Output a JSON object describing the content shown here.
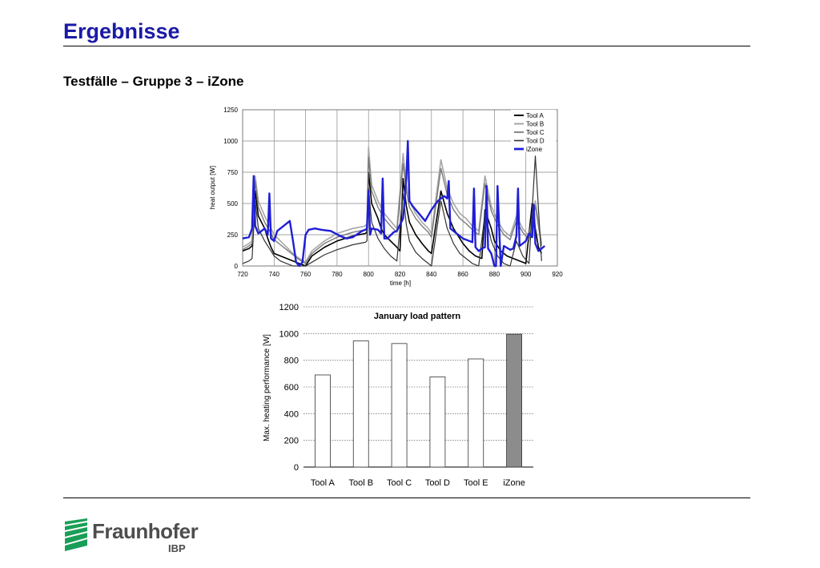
{
  "header": {
    "title": "Ergebnisse",
    "subtitle": "Testfälle – Gruppe 3 – iZone"
  },
  "colors": {
    "title": "#1a1aa6",
    "izone": "#1f1fd6",
    "bar_izone": "#8c8c8c",
    "tool_a": "#000000",
    "tool_b": "#a6a6a6",
    "tool_c": "#7a7a7a",
    "tool_d": "#333333",
    "brand_green": "#1a9e57"
  },
  "chart_data": [
    {
      "type": "line",
      "xlabel": "time [h]",
      "ylabel": "heat output [W]",
      "xlim": [
        720,
        920
      ],
      "ylim": [
        0,
        1250
      ],
      "x_ticks": [
        "720",
        "740",
        "760",
        "780",
        "800",
        "820",
        "840",
        "860",
        "880",
        "900",
        "920"
      ],
      "y_ticks": [
        "0",
        "250",
        "500",
        "750",
        "1000",
        "1250"
      ],
      "grid": true,
      "legend_position": "top-right",
      "series": [
        {
          "name": "Tool A",
          "x": [
            720,
            724,
            726,
            728,
            730,
            734,
            736,
            738,
            740,
            744,
            748,
            752,
            756,
            758,
            760,
            764,
            772,
            780,
            790,
            798,
            799,
            800,
            802,
            806,
            808,
            810,
            814,
            818,
            820,
            822,
            824,
            826,
            830,
            834,
            838,
            840,
            846,
            850,
            854,
            858,
            860,
            864,
            868,
            872,
            874,
            878,
            880,
            884,
            888,
            892,
            896,
            898,
            900,
            904,
            906,
            908,
            910
          ],
          "values": [
            120,
            140,
            160,
            600,
            400,
            300,
            220,
            150,
            100,
            80,
            60,
            40,
            20,
            10,
            0,
            80,
            150,
            200,
            240,
            260,
            270,
            750,
            500,
            380,
            300,
            250,
            200,
            150,
            120,
            700,
            480,
            350,
            250,
            180,
            120,
            100,
            600,
            420,
            300,
            220,
            180,
            120,
            80,
            60,
            450,
            300,
            200,
            120,
            80,
            60,
            40,
            30,
            20,
            500,
            300,
            150,
            100
          ]
        },
        {
          "name": "Tool B",
          "x": [
            720,
            724,
            726,
            728,
            730,
            734,
            738,
            740,
            744,
            748,
            752,
            756,
            760,
            764,
            772,
            780,
            790,
            798,
            799,
            800,
            802,
            806,
            810,
            814,
            818,
            822,
            824,
            826,
            830,
            834,
            838,
            840,
            846,
            850,
            854,
            858,
            862,
            866,
            870,
            874,
            878,
            882,
            886,
            890,
            894,
            898,
            902,
            906,
            910
          ],
          "values": [
            150,
            180,
            200,
            720,
            520,
            400,
            300,
            250,
            200,
            150,
            100,
            60,
            30,
            120,
            200,
            260,
            300,
            320,
            340,
            950,
            650,
            520,
            420,
            360,
            300,
            900,
            650,
            520,
            420,
            350,
            300,
            260,
            850,
            620,
            500,
            420,
            380,
            320,
            280,
            720,
            480,
            360,
            280,
            240,
            400,
            300,
            240,
            520,
            180
          ]
        },
        {
          "name": "Tool C",
          "x": [
            720,
            724,
            726,
            728,
            730,
            734,
            738,
            740,
            744,
            748,
            752,
            756,
            760,
            764,
            772,
            780,
            790,
            798,
            799,
            800,
            802,
            806,
            810,
            814,
            818,
            822,
            824,
            826,
            830,
            834,
            838,
            840,
            846,
            850,
            854,
            858,
            862,
            866,
            870,
            874,
            878,
            882,
            886,
            890,
            894,
            898,
            902,
            906,
            910
          ],
          "values": [
            130,
            160,
            180,
            680,
            470,
            350,
            260,
            210,
            170,
            130,
            90,
            50,
            20,
            100,
            180,
            230,
            270,
            290,
            300,
            870,
            600,
            470,
            380,
            320,
            270,
            820,
            600,
            470,
            380,
            320,
            270,
            230,
            780,
            570,
            450,
            380,
            340,
            290,
            250,
            660,
            440,
            330,
            250,
            210,
            360,
            270,
            210,
            480,
            160
          ]
        },
        {
          "name": "Tool D",
          "x": [
            720,
            724,
            726,
            728,
            730,
            734,
            738,
            740,
            744,
            748,
            752,
            756,
            760,
            764,
            772,
            780,
            790,
            798,
            799,
            800,
            802,
            806,
            810,
            814,
            818,
            822,
            824,
            826,
            830,
            834,
            838,
            840,
            846,
            850,
            854,
            858,
            862,
            866,
            870,
            874,
            878,
            882,
            886,
            890,
            894,
            898,
            902,
            906,
            910
          ],
          "values": [
            20,
            40,
            60,
            520,
            300,
            200,
            120,
            80,
            40,
            20,
            0,
            0,
            0,
            30,
            90,
            130,
            170,
            190,
            200,
            620,
            350,
            220,
            140,
            80,
            40,
            580,
            330,
            200,
            110,
            60,
            20,
            0,
            520,
            300,
            180,
            100,
            60,
            20,
            0,
            420,
            200,
            80,
            20,
            0,
            200,
            80,
            20,
            880,
            40
          ]
        },
        {
          "name": "iZone",
          "x": [
            720,
            724,
            726,
            727,
            728,
            730,
            734,
            736,
            737,
            738,
            740,
            742,
            746,
            750,
            752,
            754,
            756,
            758,
            760,
            762,
            766,
            770,
            776,
            782,
            786,
            790,
            796,
            798,
            799,
            800,
            801,
            802,
            806,
            808,
            809,
            810,
            812,
            816,
            818,
            822,
            824,
            825,
            826,
            828,
            832,
            836,
            840,
            844,
            848,
            850,
            851,
            852,
            856,
            860,
            864,
            866,
            867,
            868,
            870,
            872,
            874,
            875,
            876,
            878,
            880,
            881,
            882,
            884,
            886,
            890,
            892,
            894,
            895,
            896,
            898,
            900,
            902,
            904,
            905,
            906,
            908,
            910,
            912
          ],
          "values": [
            220,
            230,
            300,
            720,
            320,
            260,
            300,
            250,
            580,
            220,
            200,
            280,
            320,
            360,
            200,
            30,
            0,
            30,
            250,
            290,
            300,
            290,
            280,
            240,
            220,
            230,
            280,
            290,
            300,
            600,
            250,
            300,
            290,
            260,
            700,
            220,
            220,
            270,
            280,
            380,
            700,
            1000,
            520,
            480,
            420,
            360,
            450,
            520,
            560,
            540,
            680,
            300,
            260,
            220,
            200,
            190,
            620,
            150,
            120,
            140,
            150,
            640,
            140,
            100,
            0,
            0,
            640,
            0,
            160,
            130,
            140,
            240,
            620,
            160,
            180,
            200,
            260,
            230,
            490,
            180,
            120,
            140,
            160
          ]
        }
      ]
    },
    {
      "type": "bar",
      "title": "January load pattern",
      "ylabel": "Max. heating performance [W]",
      "ylim": [
        0,
        1200
      ],
      "y_ticks": [
        "0",
        "200",
        "400",
        "600",
        "800",
        "1000",
        "1200"
      ],
      "grid": true,
      "categories": [
        "Tool A",
        "Tool B",
        "Tool C",
        "Tool D",
        "Tool E",
        "iZone"
      ],
      "values": [
        690,
        945,
        925,
        675,
        810,
        995
      ]
    }
  ],
  "logo": {
    "name": "Fraunhofer",
    "subname": "IBP"
  }
}
